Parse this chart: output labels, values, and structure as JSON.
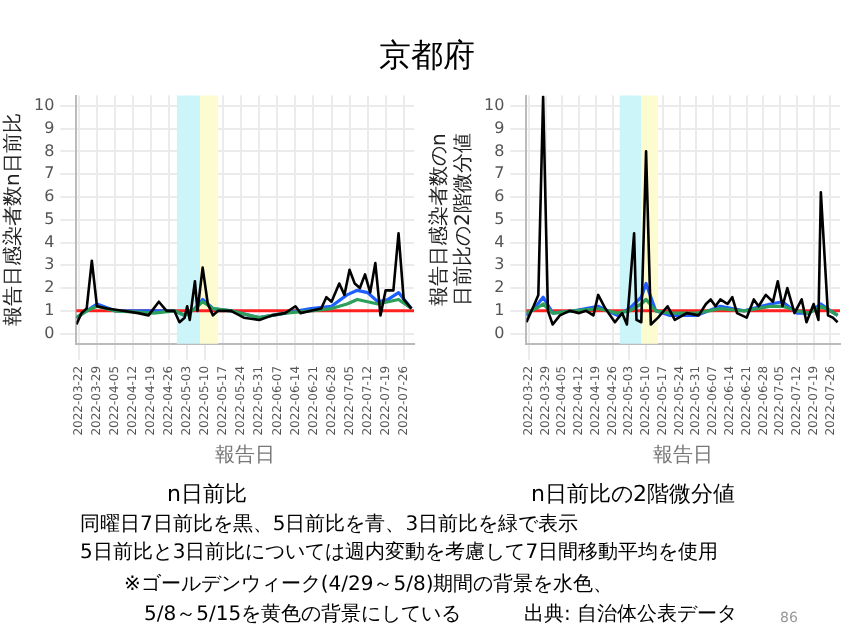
{
  "chart_data": [
    {
      "type": "line",
      "title": "n日前比",
      "xlabel": "報告日",
      "ylabel": "報告日感染者数n日前比",
      "xlim": [
        "2022-03-21",
        "2022-07-30"
      ],
      "xticks": [
        "2022-03-22",
        "2022-03-29",
        "2022-04-05",
        "2022-04-12",
        "2022-04-19",
        "2022-04-26",
        "2022-05-03",
        "2022-05-10",
        "2022-05-17",
        "2022-05-24",
        "2022-05-31",
        "2022-06-07",
        "2022-06-14",
        "2022-06-21",
        "2022-06-28",
        "2022-07-05",
        "2022-07-12",
        "2022-07-19",
        "2022-07-26"
      ],
      "ylim": [
        -0.45,
        10.45
      ],
      "yticks": [
        0,
        1,
        2,
        3,
        4,
        5,
        6,
        7,
        8,
        9,
        10
      ],
      "grid": true,
      "legend": false,
      "marker": "none",
      "line_style": "solid",
      "bands": [
        {
          "axis": "x",
          "from": "2022-04-29",
          "to": "2022-05-08",
          "color": "#ccf5fa"
        },
        {
          "axis": "x",
          "from": "2022-05-08",
          "to": "2022-05-15",
          "color": "#fdfbd0"
        }
      ],
      "ref_lines": [
        {
          "axis": "y",
          "value": 1,
          "color": "#ff2020"
        }
      ],
      "series": [
        {
          "color": "#000000",
          "x": [
            "2022-03-21",
            "2022-03-23",
            "2022-03-25",
            "2022-03-27",
            "2022-03-29",
            "2022-04-02",
            "2022-04-08",
            "2022-04-14",
            "2022-04-18",
            "2022-04-22",
            "2022-04-25",
            "2022-04-28",
            "2022-04-30",
            "2022-05-02",
            "2022-05-03",
            "2022-05-04",
            "2022-05-06",
            "2022-05-07",
            "2022-05-09",
            "2022-05-11",
            "2022-05-13",
            "2022-05-15",
            "2022-05-20",
            "2022-05-25",
            "2022-05-31",
            "2022-06-05",
            "2022-06-10",
            "2022-06-14",
            "2022-06-16",
            "2022-06-20",
            "2022-06-24",
            "2022-06-26",
            "2022-06-28",
            "2022-07-01",
            "2022-07-03",
            "2022-07-05",
            "2022-07-07",
            "2022-07-09",
            "2022-07-11",
            "2022-07-13",
            "2022-07-15",
            "2022-07-17",
            "2022-07-19",
            "2022-07-22",
            "2022-07-24",
            "2022-07-26",
            "2022-07-29"
          ],
          "values": [
            0.4,
            0.9,
            1.1,
            3.2,
            1.2,
            1.1,
            1.0,
            0.9,
            0.8,
            1.4,
            1.0,
            1.0,
            0.5,
            0.7,
            1.2,
            0.6,
            2.3,
            1.0,
            2.9,
            1.3,
            0.8,
            1.0,
            1.0,
            0.7,
            0.6,
            0.8,
            0.9,
            1.2,
            0.9,
            1.0,
            1.1,
            1.6,
            1.4,
            2.2,
            1.7,
            2.8,
            2.2,
            2.0,
            2.6,
            1.8,
            3.1,
            0.8,
            1.9,
            1.9,
            4.4,
            1.5,
            1.1
          ]
        },
        {
          "color": "#2ca05a",
          "x": [
            "2022-03-21",
            "2022-03-25",
            "2022-03-29",
            "2022-04-05",
            "2022-04-20",
            "2022-04-28",
            "2022-05-02",
            "2022-05-06",
            "2022-05-09",
            "2022-05-13",
            "2022-05-20",
            "2022-05-31",
            "2022-06-10",
            "2022-06-20",
            "2022-06-28",
            "2022-07-04",
            "2022-07-08",
            "2022-07-12",
            "2022-07-16",
            "2022-07-20",
            "2022-07-24",
            "2022-07-29"
          ],
          "values": [
            0.7,
            1.0,
            1.2,
            1.0,
            0.9,
            1.0,
            0.8,
            1.1,
            1.4,
            1.1,
            1.0,
            0.7,
            0.9,
            1.0,
            1.1,
            1.3,
            1.5,
            1.4,
            1.3,
            1.4,
            1.5,
            1.1
          ]
        },
        {
          "color": "#1f5fff",
          "x": [
            "2022-03-21",
            "2022-03-25",
            "2022-03-29",
            "2022-04-05",
            "2022-04-20",
            "2022-04-28",
            "2022-05-02",
            "2022-05-06",
            "2022-05-09",
            "2022-05-13",
            "2022-05-20",
            "2022-05-31",
            "2022-06-10",
            "2022-06-20",
            "2022-06-28",
            "2022-07-04",
            "2022-07-08",
            "2022-07-12",
            "2022-07-16",
            "2022-07-20",
            "2022-07-24",
            "2022-07-29"
          ],
          "values": [
            0.7,
            1.0,
            1.3,
            1.0,
            1.0,
            1.0,
            0.8,
            1.1,
            1.5,
            1.1,
            1.0,
            0.7,
            0.9,
            1.1,
            1.2,
            1.7,
            1.9,
            1.8,
            1.4,
            1.5,
            1.8,
            1.1
          ]
        }
      ]
    },
    {
      "type": "line",
      "title": "n日前比の2階微分値",
      "xlabel": "報告日",
      "ylabel": "報告日感染者数のn日前比の2階微分値",
      "xlim": [
        "2022-03-21",
        "2022-07-30"
      ],
      "xticks": [
        "2022-03-22",
        "2022-03-29",
        "2022-04-05",
        "2022-04-12",
        "2022-04-19",
        "2022-04-26",
        "2022-05-03",
        "2022-05-10",
        "2022-05-17",
        "2022-05-24",
        "2022-05-31",
        "2022-06-07",
        "2022-06-14",
        "2022-06-21",
        "2022-06-28",
        "2022-07-05",
        "2022-07-12",
        "2022-07-19",
        "2022-07-26"
      ],
      "ylim": [
        -0.45,
        10.45
      ],
      "yticks": [
        0,
        1,
        2,
        3,
        4,
        5,
        6,
        7,
        8,
        9,
        10
      ],
      "grid": true,
      "legend": false,
      "marker": "none",
      "line_style": "solid",
      "bands": [
        {
          "axis": "x",
          "from": "2022-04-29",
          "to": "2022-05-08",
          "color": "#ccf5fa"
        },
        {
          "axis": "x",
          "from": "2022-05-08",
          "to": "2022-05-15",
          "color": "#fdfbd0"
        }
      ],
      "ref_lines": [
        {
          "axis": "y",
          "value": 1,
          "color": "#ff2020"
        }
      ],
      "series": [
        {
          "color": "#000000",
          "x": [
            "2022-03-21",
            "2022-03-24",
            "2022-03-26",
            "2022-03-28",
            "2022-03-30",
            "2022-04-01",
            "2022-04-04",
            "2022-04-08",
            "2022-04-12",
            "2022-04-15",
            "2022-04-18",
            "2022-04-20",
            "2022-04-23",
            "2022-04-27",
            "2022-04-30",
            "2022-05-02",
            "2022-05-05",
            "2022-05-06",
            "2022-05-08",
            "2022-05-10",
            "2022-05-12",
            "2022-05-15",
            "2022-05-19",
            "2022-05-22",
            "2022-05-27",
            "2022-06-01",
            "2022-06-04",
            "2022-06-06",
            "2022-06-08",
            "2022-06-10",
            "2022-06-13",
            "2022-06-15",
            "2022-06-17",
            "2022-06-21",
            "2022-06-24",
            "2022-06-26",
            "2022-06-29",
            "2022-07-02",
            "2022-07-04",
            "2022-07-06",
            "2022-07-08",
            "2022-07-11",
            "2022-07-14",
            "2022-07-16",
            "2022-07-19",
            "2022-07-21",
            "2022-07-22",
            "2022-07-25",
            "2022-07-27",
            "2022-07-29"
          ],
          "values": [
            0.5,
            1.2,
            1.7,
            10.4,
            1.0,
            0.4,
            0.8,
            1.0,
            0.9,
            1.0,
            0.8,
            1.7,
            1.1,
            0.5,
            0.9,
            0.4,
            4.4,
            0.6,
            0.5,
            8.0,
            0.4,
            0.7,
            1.2,
            0.6,
            0.9,
            0.8,
            1.3,
            1.5,
            1.2,
            1.5,
            1.3,
            1.6,
            0.9,
            0.7,
            1.5,
            1.2,
            1.7,
            1.4,
            2.3,
            1.2,
            2.0,
            0.9,
            1.5,
            0.5,
            1.3,
            0.6,
            6.2,
            0.8,
            0.7,
            0.5
          ]
        },
        {
          "color": "#2ca05a",
          "x": [
            "2022-03-21",
            "2022-03-25",
            "2022-03-28",
            "2022-04-01",
            "2022-04-10",
            "2022-04-20",
            "2022-04-28",
            "2022-05-03",
            "2022-05-08",
            "2022-05-10",
            "2022-05-14",
            "2022-05-20",
            "2022-05-31",
            "2022-06-10",
            "2022-06-20",
            "2022-07-01",
            "2022-07-06",
            "2022-07-12",
            "2022-07-17",
            "2022-07-22",
            "2022-07-26",
            "2022-07-29"
          ],
          "values": [
            0.9,
            1.1,
            1.3,
            0.9,
            1.0,
            1.1,
            0.9,
            1.0,
            1.3,
            1.5,
            1.0,
            0.9,
            0.9,
            1.1,
            1.0,
            1.2,
            1.2,
            1.0,
            0.9,
            1.2,
            1.0,
            0.8
          ]
        },
        {
          "color": "#1f5fff",
          "x": [
            "2022-03-21",
            "2022-03-25",
            "2022-03-28",
            "2022-04-01",
            "2022-04-10",
            "2022-04-20",
            "2022-04-28",
            "2022-05-03",
            "2022-05-08",
            "2022-05-10",
            "2022-05-14",
            "2022-05-20",
            "2022-05-31",
            "2022-06-10",
            "2022-06-20",
            "2022-07-01",
            "2022-07-06",
            "2022-07-12",
            "2022-07-17",
            "2022-07-22",
            "2022-07-26",
            "2022-07-29"
          ],
          "values": [
            0.8,
            1.2,
            1.6,
            0.9,
            1.0,
            1.2,
            0.8,
            1.1,
            1.6,
            2.2,
            1.0,
            0.8,
            0.8,
            1.2,
            1.0,
            1.3,
            1.4,
            0.9,
            0.9,
            1.3,
            1.0,
            0.8
          ]
        }
      ]
    },
    {
      "type": "other",
      "title": "京都府",
      "annotations": [
        "同曜日7日前比を黒、5日前比を青、3日前比を緑で表示",
        "5日前比と3日前比については週内変動を考慮して7日間移動平均を使用",
        "※ゴールデンウィーク(4/29～5/8)期間の背景を水色、",
        "5/8～5/15を黄色の背景にしている",
        "出典: 自治体公表データ",
        "86"
      ]
    }
  ]
}
